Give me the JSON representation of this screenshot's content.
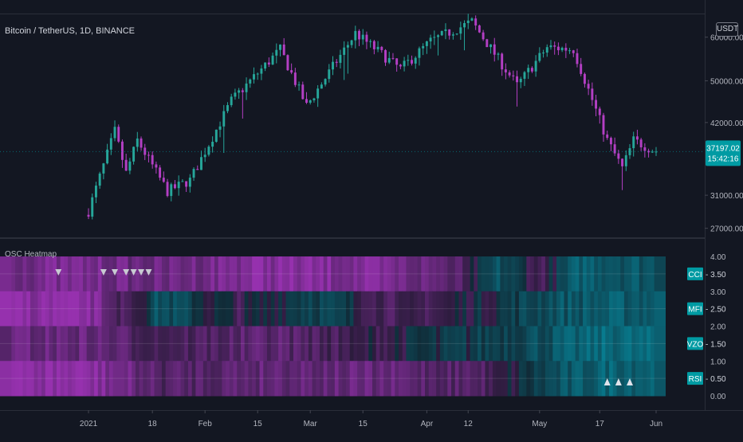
{
  "header": {
    "symbol_title": "Bitcoin / TetherUS, 1D, BINANCE",
    "currency_badge": "USDT",
    "last_price": "37197.02",
    "countdown": "15:42:16"
  },
  "colors": {
    "background": "#131722",
    "up": "#26a69a",
    "down": "#b43fc4",
    "price_tag": "#009ba3",
    "heat_bull": "#00bcd4",
    "heat_bear": "#d63ef3"
  },
  "chart_data": [
    {
      "type": "candlestick",
      "title": "Bitcoin / TetherUS, 1D, BINANCE",
      "y_ticks": [
        "60000.00",
        "50000.00",
        "42000.00",
        "31000.00",
        "27000.00"
      ],
      "y_tick_values": [
        60000,
        50000,
        42000,
        31000,
        27000
      ],
      "x_ticks": [
        "2021",
        "18",
        "Feb",
        "15",
        "Mar",
        "15",
        "Apr",
        "12",
        "May",
        "17",
        "Jun"
      ],
      "ylim": [
        26000,
        66000
      ],
      "scale": "log",
      "close_anchor_dates": [
        "Jan 1",
        "Jan 8",
        "Jan 11",
        "Jan 14",
        "Jan 22",
        "Jan 28",
        "Feb 8",
        "Feb 21",
        "Feb 28",
        "Mar 13",
        "Mar 25",
        "Apr 2",
        "Apr 13",
        "Apr 25",
        "May 3",
        "May 10",
        "May 19",
        "May 23",
        "May 26",
        "Jun 1"
      ],
      "close_anchor_values": [
        29000,
        40500,
        34000,
        39000,
        31500,
        33000,
        46000,
        57000,
        45000,
        61000,
        52500,
        59000,
        64000,
        49000,
        57500,
        57000,
        39000,
        34700,
        39000,
        37197
      ]
    },
    {
      "type": "heatmap",
      "title": "OSC Heatmap",
      "rows": [
        "CCI - 3.50",
        "MFI - 2.50",
        "VZO - 1.50",
        "RSI - 0.50"
      ],
      "row_values": [
        3.5,
        2.5,
        1.5,
        0.5
      ],
      "y_ticks": [
        "4.00",
        "3.00",
        "2.00",
        "1.00",
        "0.00"
      ],
      "ylim": [
        0,
        4
      ],
      "sell_signal_count": 7,
      "buy_signal_count": 3,
      "row_profiles": [
        {
          "name": "CCI",
          "dates": [
            "Jan 1",
            "Jan 20",
            "Feb 15",
            "Mar 15",
            "Apr 10",
            "Apr 20",
            "May 1",
            "May 12",
            "May 31"
          ],
          "values": [
            -0.7,
            -0.55,
            -0.85,
            -0.75,
            -0.45,
            0.4,
            -0.25,
            0.6,
            0.45
          ]
        },
        {
          "name": "MFI",
          "dates": [
            "Jan 1",
            "Jan 20",
            "Feb 10",
            "Mar 1",
            "Mar 25",
            "Apr 20",
            "May 5",
            "May 31"
          ],
          "values": [
            -0.9,
            0.45,
            -0.2,
            0.35,
            -0.3,
            0.1,
            0.45,
            0.55
          ]
        },
        {
          "name": "VZO",
          "dates": [
            "Jan 1",
            "Jan 20",
            "Feb 20",
            "Mar 20",
            "Apr 15",
            "May 5",
            "May 20",
            "May 31"
          ],
          "values": [
            -0.55,
            -0.25,
            -0.45,
            -0.1,
            0.2,
            0.45,
            0.7,
            0.6
          ]
        },
        {
          "name": "RSI",
          "dates": [
            "Jan 1",
            "Jan 20",
            "Feb 20",
            "Mar 20",
            "Apr 15",
            "May 5",
            "May 20",
            "May 31"
          ],
          "values": [
            -0.9,
            -0.35,
            -0.55,
            -0.5,
            -0.35,
            0.35,
            0.65,
            0.6
          ]
        }
      ]
    }
  ]
}
